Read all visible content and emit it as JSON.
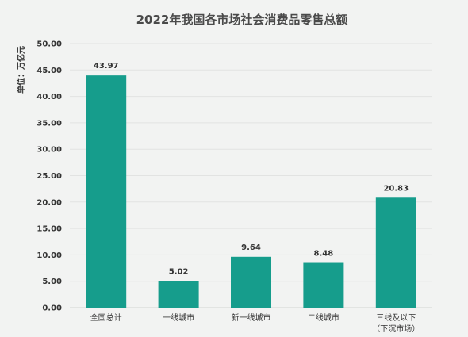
{
  "chart_data": {
    "type": "bar",
    "title": "2022年我国各市场社会消费品零售总额",
    "ylabel": "单位：万亿元",
    "xlabel": "",
    "categories": [
      "全国总计",
      "一线城市",
      "新一线城市",
      "二线城市",
      "三线及以下\n（下沉市场）"
    ],
    "values": [
      43.97,
      5.02,
      9.64,
      8.48,
      20.83
    ],
    "value_labels": [
      "43.97",
      "5.02",
      "9.64",
      "8.48",
      "20.83"
    ],
    "ylim": [
      0,
      50
    ],
    "yticks": [
      "0.00",
      "5.00",
      "10.00",
      "15.00",
      "20.00",
      "25.00",
      "30.00",
      "35.00",
      "40.00",
      "45.00",
      "50.00"
    ],
    "grid": true,
    "bar_color": "#169d8c"
  }
}
